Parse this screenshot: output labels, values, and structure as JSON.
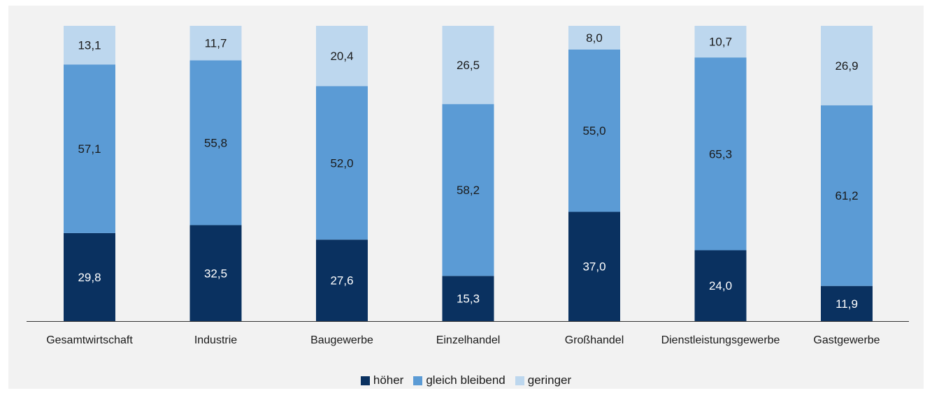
{
  "header": {
    "title_fragment": ""
  },
  "colors": {
    "hoeher": "#0a3160",
    "gleich_bleibend": "#5b9bd5",
    "geringer": "#bdd7ee",
    "panel_bg": "#f2f2f2",
    "axis": "#333333"
  },
  "chart_data": {
    "type": "bar",
    "stacked": true,
    "percent_of_100": true,
    "categories": [
      "Gesamtwirtschaft",
      "Industrie",
      "Baugewerbe",
      "Einzelhandel",
      "Großhandel",
      "Dienstleistungsgewerbe",
      "Gastgewerbe"
    ],
    "series": [
      {
        "name": "höher",
        "values": [
          29.8,
          32.5,
          27.6,
          15.3,
          37.0,
          24.0,
          11.9
        ],
        "labels": [
          "29,8",
          "32,5",
          "27,6",
          "15,3",
          "37,0",
          "24,0",
          "11,9"
        ]
      },
      {
        "name": "gleich bleibend",
        "values": [
          57.1,
          55.8,
          52.0,
          58.2,
          55.0,
          65.3,
          61.2
        ],
        "labels": [
          "57,1",
          "55,8",
          "52,0",
          "58,2",
          "55,0",
          "65,3",
          "61,2"
        ]
      },
      {
        "name": "geringer",
        "values": [
          13.1,
          11.7,
          20.4,
          26.5,
          8.0,
          10.7,
          26.9
        ],
        "labels": [
          "13,1",
          "11,7",
          "20,4",
          "26,5",
          "8,0",
          "10,7",
          "26,9"
        ]
      }
    ],
    "ylim": [
      0,
      100
    ],
    "grid": false,
    "legend": "bottom-center"
  }
}
